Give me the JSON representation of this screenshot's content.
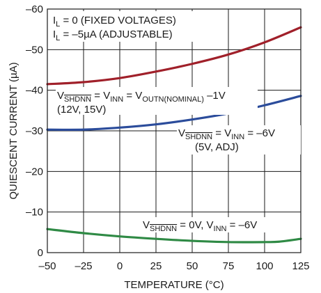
{
  "chart_data": {
    "type": "line",
    "xlabel": "TEMPERATURE (°C)",
    "ylabel": "QUIESCENT CURRENT (µA)",
    "xlim": [
      -50,
      125
    ],
    "ylim": [
      0,
      -60
    ],
    "x_ticks": [
      "–50",
      "–25",
      "0",
      "25",
      "50",
      "75",
      "100",
      "125"
    ],
    "y_ticks": [
      "0",
      "–10",
      "–20",
      "–30",
      "–40",
      "–50",
      "–60"
    ],
    "grid": true,
    "legend_note": {
      "line1": {
        "main": "I",
        "sub": "L",
        "rest": " = 0 (FIXED VOLTAGES)"
      },
      "line2": {
        "main": "I",
        "sub": "L",
        "rest": " = –5µA (ADJUSTABLE)"
      }
    },
    "series": [
      {
        "color": "#a0202a",
        "x": [
          -50,
          -25,
          0,
          25,
          50,
          75,
          100,
          125
        ],
        "y": [
          -41.5,
          -42.0,
          -43.0,
          -44.6,
          -46.5,
          -48.8,
          -51.8,
          -55.5
        ]
      },
      {
        "color": "#2b4c9b",
        "x": [
          -50,
          -25,
          0,
          25,
          50,
          75,
          100,
          125
        ],
        "y": [
          -30.3,
          -30.3,
          -30.8,
          -31.6,
          -32.8,
          -34.3,
          -36.3,
          -38.6
        ]
      },
      {
        "color": "#2f8a45",
        "x": [
          -50,
          -25,
          0,
          25,
          50,
          75,
          100,
          110,
          125
        ],
        "y": [
          -5.8,
          -4.8,
          -4.0,
          -3.4,
          -2.9,
          -2.6,
          -2.6,
          -2.7,
          -3.4
        ]
      }
    ],
    "annotations": {
      "blue_upper": {
        "line1": "V",
        "line1_sub_ol": "SHDNN",
        "line1_rest": " = V",
        "line1_sub2": "INN",
        "line1_rest2": " = V",
        "line1_sub3": "OUTN(NOMINAL)",
        "line1_rest3": " –1V",
        "line2": "(12V, 15V)"
      },
      "blue_lower": {
        "line1": "V",
        "line1_sub_ol": "SHDNN",
        "line1_rest": " = V",
        "line1_sub2": "INN",
        "line1_rest2": " = –6V",
        "line2": "(5V, ADJ)"
      },
      "green": {
        "line1": "V",
        "line1_sub_ol": "SHDNN",
        "line1_rest": " = 0V, V",
        "line1_sub2": "INN",
        "line1_rest2": " = –6V"
      }
    }
  }
}
